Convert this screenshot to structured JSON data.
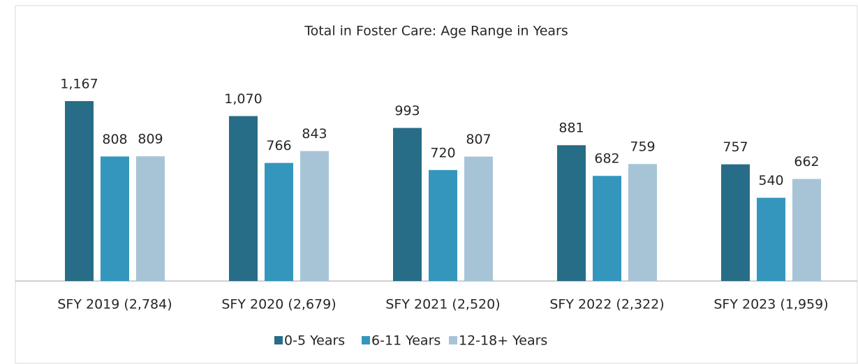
{
  "chart_data": {
    "type": "bar",
    "title": "Total in Foster Care: Age Range in Years",
    "categories": [
      "SFY 2019 (2,784)",
      "SFY 2020 (2,679)",
      "SFY 2021 (2,520)",
      "SFY 2022 (2,322)",
      "SFY 2023 (1,959)"
    ],
    "series": [
      {
        "name": "0-5 Years",
        "color": "#276d87",
        "values": [
          1167,
          1070,
          993,
          881,
          757
        ],
        "value_labels": [
          "1,167",
          "1,070",
          "993",
          "881",
          "757"
        ]
      },
      {
        "name": "6-11 Years",
        "color": "#3596bd",
        "values": [
          808,
          766,
          720,
          682,
          540
        ],
        "value_labels": [
          "808",
          "766",
          "720",
          "682",
          "540"
        ]
      },
      {
        "name": "12-18+ Years",
        "color": "#a7c4d7",
        "values": [
          809,
          843,
          807,
          759,
          662
        ],
        "value_labels": [
          "809",
          "843",
          "807",
          "759",
          "662"
        ]
      }
    ],
    "legend": "bottom"
  }
}
